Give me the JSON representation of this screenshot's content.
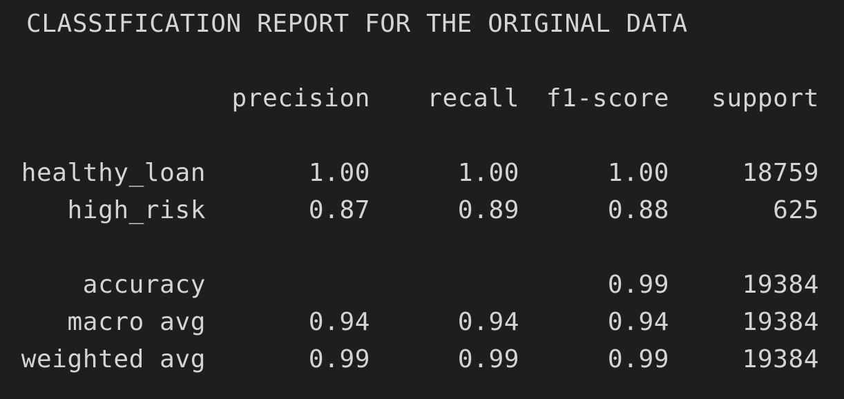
{
  "report": {
    "title": "CLASSIFICATION REPORT FOR THE ORIGINAL DATA",
    "headers": {
      "precision": "precision",
      "recall": "recall",
      "f1_score": "f1-score",
      "support": "support"
    },
    "rows": [
      {
        "label": "healthy_loan",
        "precision": "1.00",
        "recall": "1.00",
        "f1_score": "1.00",
        "support": "18759"
      },
      {
        "label": "high_risk",
        "precision": "0.87",
        "recall": "0.89",
        "f1_score": "0.88",
        "support": "625"
      },
      {
        "label": "accuracy",
        "precision": "",
        "recall": "",
        "f1_score": "0.99",
        "support": "19384"
      },
      {
        "label": "macro avg",
        "precision": "0.94",
        "recall": "0.94",
        "f1_score": "0.94",
        "support": "19384"
      },
      {
        "label": "weighted avg",
        "precision": "0.99",
        "recall": "0.99",
        "f1_score": "0.99",
        "support": "19384"
      }
    ]
  },
  "colors": {
    "background": "#1e1e1e",
    "text": "#d4d4d4"
  }
}
